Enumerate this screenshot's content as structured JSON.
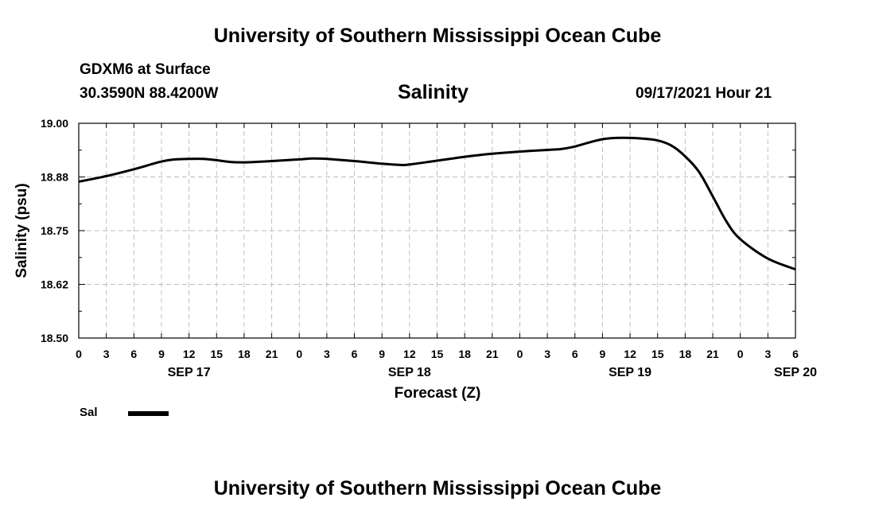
{
  "header": {
    "title_top": "University of Southern Mississippi Ocean Cube",
    "title_bottom": "University of Southern Mississippi Ocean Cube",
    "station": "GDXM6 at Surface",
    "coords": "30.3590N  88.4200W",
    "datetime": "09/17/2021 Hour 21"
  },
  "chart_data": {
    "type": "line",
    "title": "Salinity",
    "xlabel": "Forecast (Z)",
    "ylabel": "Salinity (psu)",
    "ylim": [
      18.5,
      19.0
    ],
    "yticks": [
      "18.50",
      "18.62",
      "18.75",
      "18.88",
      "19.00"
    ],
    "xlim_hours": [
      0,
      78
    ],
    "xtick_labels": [
      "0",
      "3",
      "6",
      "9",
      "12",
      "15",
      "18",
      "21",
      "0",
      "3",
      "6",
      "9",
      "12",
      "15",
      "18",
      "21",
      "0",
      "3",
      "6",
      "9",
      "12",
      "15",
      "18",
      "21",
      "0",
      "3",
      "6"
    ],
    "day_labels": [
      {
        "label": "SEP 17",
        "hour": 12
      },
      {
        "label": "SEP 18",
        "hour": 36
      },
      {
        "label": "SEP 19",
        "hour": 60
      },
      {
        "label": "SEP 20",
        "hour": 78
      }
    ],
    "grid": true,
    "legend": {
      "placement": "bottom-left"
    },
    "series": [
      {
        "name": "Sal",
        "color": "#000000",
        "x": [
          0,
          3,
          6,
          9,
          10.5,
          12,
          13.5,
          15,
          16.5,
          18,
          21,
          24,
          25.5,
          27,
          30,
          33,
          35,
          36,
          39,
          42,
          45,
          48,
          51,
          52.5,
          54,
          55.5,
          57,
          58.5,
          60,
          61.5,
          63,
          64.5,
          66,
          67.5,
          69,
          70.5,
          72,
          75,
          78
        ],
        "y": [
          18.864,
          18.877,
          18.893,
          18.911,
          18.916,
          18.917,
          18.917,
          18.914,
          18.91,
          18.909,
          18.912,
          18.916,
          18.918,
          18.917,
          18.912,
          18.906,
          18.903,
          18.904,
          18.913,
          18.922,
          18.929,
          18.934,
          18.938,
          18.94,
          18.946,
          18.955,
          18.963,
          18.966,
          18.966,
          18.964,
          18.96,
          18.948,
          18.923,
          18.887,
          18.83,
          18.771,
          18.73,
          18.685,
          18.66
        ]
      }
    ]
  }
}
